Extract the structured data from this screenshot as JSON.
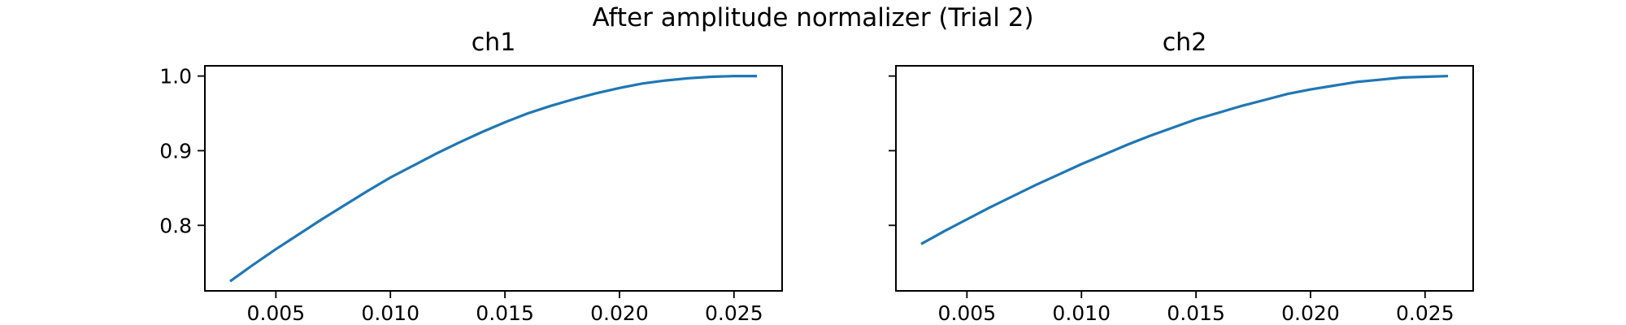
{
  "figure": {
    "title": "After amplitude normalizer (Trial 2)",
    "line_color": "#1f77b4",
    "sharey": true
  },
  "chart_data": [
    {
      "type": "line",
      "title": "ch1",
      "xlabel": "",
      "ylabel": "",
      "xlim": [
        0.0019,
        0.0271
      ],
      "ylim": [
        0.7122,
        1.0137
      ],
      "xticks": [
        0.005,
        0.01,
        0.015,
        0.02,
        0.025
      ],
      "xtick_labels": [
        "0.005",
        "0.010",
        "0.015",
        "0.020",
        "0.025"
      ],
      "yticks": [
        0.8,
        0.9,
        1.0
      ],
      "ytick_labels": [
        "0.8",
        "0.9",
        "1.0"
      ],
      "grid": false,
      "series": [
        {
          "x": [
            0.003,
            0.004,
            0.005,
            0.006,
            0.007,
            0.008,
            0.009,
            0.01,
            0.011,
            0.012,
            0.013,
            0.014,
            0.015,
            0.016,
            0.017,
            0.018,
            0.019,
            0.02,
            0.021,
            0.022,
            0.023,
            0.024,
            0.025,
            0.026
          ],
          "y": [
            0.725,
            0.747,
            0.768,
            0.788,
            0.808,
            0.827,
            0.846,
            0.864,
            0.88,
            0.896,
            0.911,
            0.925,
            0.938,
            0.95,
            0.96,
            0.969,
            0.977,
            0.984,
            0.99,
            0.994,
            0.997,
            0.999,
            1.0,
            1.0
          ]
        }
      ]
    },
    {
      "type": "line",
      "title": "ch2",
      "xlabel": "",
      "ylabel": "",
      "xlim": [
        0.0019,
        0.0271
      ],
      "ylim": [
        0.7122,
        1.0137
      ],
      "xticks": [
        0.005,
        0.01,
        0.015,
        0.02,
        0.025
      ],
      "xtick_labels": [
        "0.005",
        "0.010",
        "0.015",
        "0.020",
        "0.025"
      ],
      "yticks": [
        0.8,
        0.9,
        1.0
      ],
      "ytick_labels": [],
      "grid": false,
      "series": [
        {
          "x": [
            0.003,
            0.004,
            0.005,
            0.006,
            0.007,
            0.008,
            0.009,
            0.01,
            0.011,
            0.012,
            0.013,
            0.014,
            0.015,
            0.016,
            0.017,
            0.018,
            0.019,
            0.02,
            0.021,
            0.022,
            0.023,
            0.024,
            0.025,
            0.026
          ],
          "y": [
            0.775,
            0.792,
            0.808,
            0.824,
            0.839,
            0.854,
            0.868,
            0.882,
            0.895,
            0.908,
            0.92,
            0.931,
            0.942,
            0.951,
            0.96,
            0.968,
            0.976,
            0.982,
            0.987,
            0.992,
            0.995,
            0.998,
            0.999,
            1.0
          ]
        }
      ]
    }
  ]
}
